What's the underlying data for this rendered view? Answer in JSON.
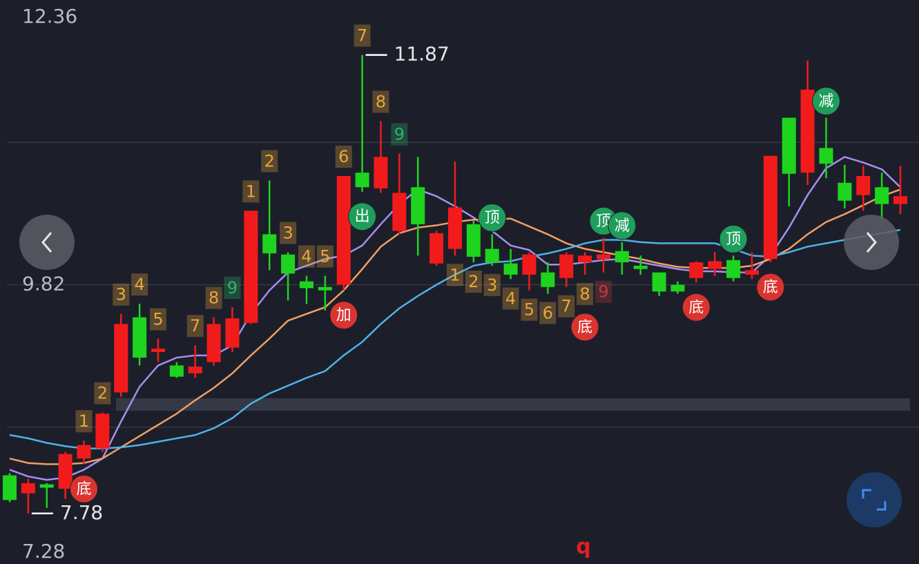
{
  "chart_data": {
    "type": "candlestick",
    "ylim": [
      7.28,
      12.36
    ],
    "yticks": [
      12.36,
      9.82,
      7.28
    ],
    "grid_values": [
      11.09,
      9.82,
      8.55
    ],
    "up_color": "#f21b1b",
    "down_color": "#1ed41e",
    "open": [
      8.12,
      7.96,
      8.04,
      8.0,
      8.27,
      8.36,
      8.86,
      9.53,
      9.22,
      9.1,
      9.03,
      9.13,
      9.26,
      9.48,
      10.27,
      10.09,
      9.85,
      9.8,
      9.82,
      10.82,
      10.68,
      10.3,
      10.69,
      10.01,
      10.14,
      10.36,
      10.14,
      10.01,
      9.91,
      9.93,
      9.88,
      10.02,
      10.05,
      10.12,
      9.99,
      9.93,
      9.82,
      9.88,
      9.96,
      10.04,
      9.91,
      10.05,
      11.31,
      10.82,
      11.04,
      10.73,
      10.62,
      10.69,
      10.54
    ],
    "high": [
      8.14,
      8.09,
      8.05,
      8.33,
      8.43,
      8.68,
      9.56,
      9.65,
      9.34,
      9.13,
      9.28,
      9.53,
      9.62,
      10.48,
      10.75,
      10.11,
      9.9,
      9.9,
      10.79,
      11.87,
      11.28,
      10.99,
      10.96,
      10.3,
      10.92,
      10.39,
      10.27,
      10.14,
      10.11,
      10.02,
      10.11,
      10.11,
      10.24,
      10.2,
      10.08,
      9.93,
      9.85,
      10.03,
      10.11,
      10.08,
      10.11,
      10.97,
      11.31,
      11.82,
      11.31,
      10.89,
      10.88,
      10.82,
      10.88
    ],
    "low": [
      7.88,
      7.78,
      7.83,
      7.91,
      8.22,
      8.33,
      8.82,
      9.1,
      9.13,
      8.99,
      8.99,
      9.1,
      9.22,
      9.47,
      9.95,
      9.68,
      9.65,
      9.59,
      9.77,
      10.65,
      10.64,
      10.27,
      10.08,
      9.99,
      10.08,
      10.02,
      9.99,
      9.87,
      9.77,
      9.74,
      9.8,
      9.91,
      9.93,
      9.91,
      9.91,
      9.72,
      9.74,
      9.84,
      9.9,
      9.85,
      9.87,
      10.02,
      10.52,
      10.71,
      10.77,
      10.5,
      10.48,
      10.4,
      10.45
    ],
    "close": [
      7.9,
      8.05,
      8.01,
      8.31,
      8.39,
      8.67,
      9.47,
      9.17,
      9.25,
      9.0,
      9.09,
      9.47,
      9.52,
      10.48,
      10.1,
      9.92,
      9.79,
      9.77,
      10.79,
      10.69,
      10.96,
      10.64,
      10.36,
      10.28,
      10.51,
      10.07,
      10.02,
      9.91,
      10.09,
      9.8,
      10.09,
      10.08,
      10.09,
      10.02,
      9.96,
      9.76,
      9.76,
      10.02,
      10.03,
      9.88,
      9.95,
      10.97,
      10.81,
      11.56,
      10.9,
      10.57,
      10.79,
      10.54,
      10.61
    ],
    "series": [
      {
        "color": "#a98ef0",
        "values": [
          8.17,
          8.11,
          8.08,
          8.1,
          8.17,
          8.27,
          8.6,
          8.91,
          9.1,
          9.17,
          9.19,
          9.19,
          9.28,
          9.56,
          9.77,
          9.93,
          9.99,
          10.05,
          10.08,
          10.17,
          10.36,
          10.54,
          10.67,
          10.61,
          10.52,
          10.42,
          10.3,
          10.17,
          10.13,
          10.0,
          10.0,
          10.02,
          10.04,
          10.05,
          10.02,
          9.99,
          9.96,
          9.94,
          9.94,
          9.93,
          9.93,
          10.08,
          10.33,
          10.62,
          10.86,
          10.96,
          10.91,
          10.85,
          10.69
        ]
      },
      {
        "color": "#f0a064",
        "values": [
          8.27,
          8.23,
          8.22,
          8.22,
          8.23,
          8.27,
          8.37,
          8.47,
          8.57,
          8.67,
          8.79,
          8.9,
          9.03,
          9.19,
          9.34,
          9.5,
          9.56,
          9.62,
          9.77,
          9.96,
          10.16,
          10.28,
          10.33,
          10.35,
          10.38,
          10.4,
          10.4,
          10.41,
          10.34,
          10.27,
          10.19,
          10.14,
          10.11,
          10.08,
          10.05,
          10.01,
          9.98,
          9.97,
          9.97,
          9.97,
          9.99,
          10.05,
          10.14,
          10.27,
          10.38,
          10.45,
          10.53,
          10.61,
          10.67
        ]
      },
      {
        "color": "#4fb3e8",
        "values": [
          8.48,
          8.45,
          8.41,
          8.38,
          8.36,
          8.36,
          8.37,
          8.39,
          8.42,
          8.45,
          8.48,
          8.54,
          8.63,
          8.76,
          8.85,
          8.92,
          8.99,
          9.05,
          9.19,
          9.31,
          9.47,
          9.61,
          9.72,
          9.82,
          9.91,
          9.99,
          10.02,
          10.03,
          10.07,
          10.1,
          10.14,
          10.19,
          10.22,
          10.22,
          10.2,
          10.19,
          10.19,
          10.19,
          10.19,
          10.14,
          10.08,
          10.07,
          10.11,
          10.16,
          10.19,
          10.22,
          10.25,
          10.28,
          10.31
        ]
      }
    ],
    "count_color": "#e8a63c",
    "counts": [
      null,
      null,
      null,
      null,
      {
        "label": "1",
        "place": "above"
      },
      {
        "label": "2",
        "place": "above"
      },
      {
        "label": "3",
        "place": "above"
      },
      {
        "label": "4",
        "place": "above"
      },
      {
        "label": "5",
        "place": "above"
      },
      null,
      {
        "label": "7",
        "place": "above"
      },
      {
        "label": "8",
        "place": "above"
      },
      {
        "label": "9",
        "place": "above",
        "color": "#2fb36a"
      },
      {
        "label": "1",
        "place": "above"
      },
      {
        "label": "2",
        "place": "above"
      },
      {
        "label": "3",
        "place": "above"
      },
      {
        "label": "4",
        "place": "above"
      },
      {
        "label": "5",
        "place": "above"
      },
      {
        "label": "6",
        "place": "above"
      },
      {
        "label": "7",
        "place": "above"
      },
      {
        "label": "8",
        "place": "above"
      },
      {
        "label": "9",
        "place": "above",
        "color": "#2fb36a"
      },
      null,
      null,
      {
        "label": "1",
        "place": "below"
      },
      {
        "label": "2",
        "place": "below"
      },
      {
        "label": "3",
        "place": "below"
      },
      {
        "label": "4",
        "place": "below"
      },
      {
        "label": "5",
        "place": "below"
      },
      {
        "label": "6",
        "place": "below"
      },
      {
        "label": "7",
        "place": "below"
      },
      {
        "label": "8",
        "place": "below"
      },
      {
        "label": "9",
        "place": "below",
        "color": "#c23a3a"
      },
      null,
      null,
      null,
      null,
      null,
      null,
      null,
      null,
      null,
      null,
      null,
      null,
      null,
      null,
      null,
      null
    ],
    "signals": [
      null,
      null,
      null,
      null,
      {
        "label": "底",
        "place": "below",
        "color": "#d9342f"
      },
      null,
      null,
      null,
      null,
      null,
      null,
      null,
      null,
      null,
      null,
      null,
      null,
      null,
      {
        "label": "加",
        "place": "below",
        "color": "#d9342f"
      },
      {
        "label": "出",
        "place": "below",
        "color": "#1f9e5b"
      },
      null,
      null,
      null,
      null,
      null,
      null,
      {
        "label": "顶",
        "place": "above",
        "color": "#1f9e5b"
      },
      null,
      null,
      null,
      null,
      {
        "label": "底",
        "place": "below",
        "color": "#d9342f"
      },
      {
        "label": "顶",
        "place": "above",
        "color": "#1f9e5b"
      },
      {
        "label": "减",
        "place": "above",
        "color": "#1f9e5b"
      },
      null,
      null,
      null,
      {
        "label": "底",
        "place": "below",
        "color": "#d9342f"
      },
      null,
      {
        "label": "顶",
        "place": "above",
        "color": "#1f9e5b"
      },
      null,
      {
        "label": "底",
        "place": "below",
        "color": "#d9342f"
      },
      null,
      null,
      {
        "label": "减",
        "place": "above",
        "color": "#1f9e5b"
      },
      null,
      null,
      null,
      null
    ],
    "high_marker": 11.87,
    "low_marker": 7.78,
    "footer_mark": "q"
  }
}
